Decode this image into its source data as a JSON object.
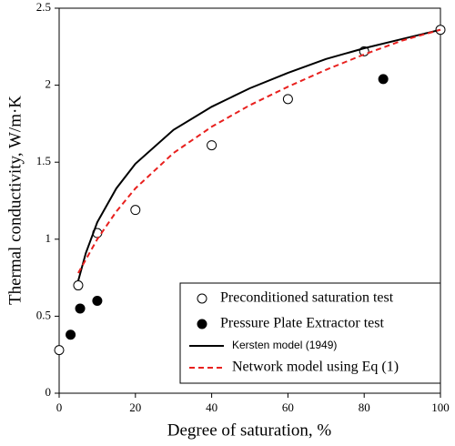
{
  "chart_data": {
    "type": "scatter",
    "x_label": "Degree of saturation, %",
    "y_label": "Thermal conductivity, W/m·K",
    "xlim": [
      0,
      100
    ],
    "xticks": [
      0,
      20,
      40,
      60,
      80,
      100
    ],
    "ylim": [
      0,
      2.5
    ],
    "yticks": [
      0,
      0.5,
      1,
      1.5,
      2,
      2.5
    ],
    "legend": "lower right",
    "series": [
      {
        "name": "Preconditioned saturation test",
        "marker": "open",
        "color": "#000000",
        "x": [
          0,
          5,
          10,
          20,
          40,
          60,
          80,
          100
        ],
        "y": [
          0.28,
          0.7,
          1.04,
          1.19,
          1.61,
          1.91,
          2.22,
          2.36
        ]
      },
      {
        "name": "Pressure Plate Extractor test",
        "marker": "filled",
        "color": "#000000",
        "x": [
          3,
          5.5,
          10,
          85
        ],
        "y": [
          0.38,
          0.55,
          0.6,
          2.04
        ]
      },
      {
        "name": "Kersten model (1949)",
        "line": "solid",
        "color": "#000000",
        "x": [
          5,
          7,
          10,
          15,
          20,
          30,
          40,
          50,
          60,
          70,
          80,
          90,
          100
        ],
        "y": [
          0.73,
          0.91,
          1.11,
          1.33,
          1.49,
          1.71,
          1.86,
          1.98,
          2.08,
          2.17,
          2.24,
          2.3,
          2.36
        ]
      },
      {
        "name": "Network model using Eq (1)",
        "line": "dashed",
        "color": "#e8201e",
        "x": [
          5,
          10,
          15,
          20,
          30,
          40,
          50,
          60,
          70,
          80,
          90,
          100
        ],
        "y": [
          0.78,
          1.0,
          1.18,
          1.33,
          1.56,
          1.73,
          1.87,
          1.99,
          2.1,
          2.2,
          2.29,
          2.36
        ]
      }
    ]
  }
}
